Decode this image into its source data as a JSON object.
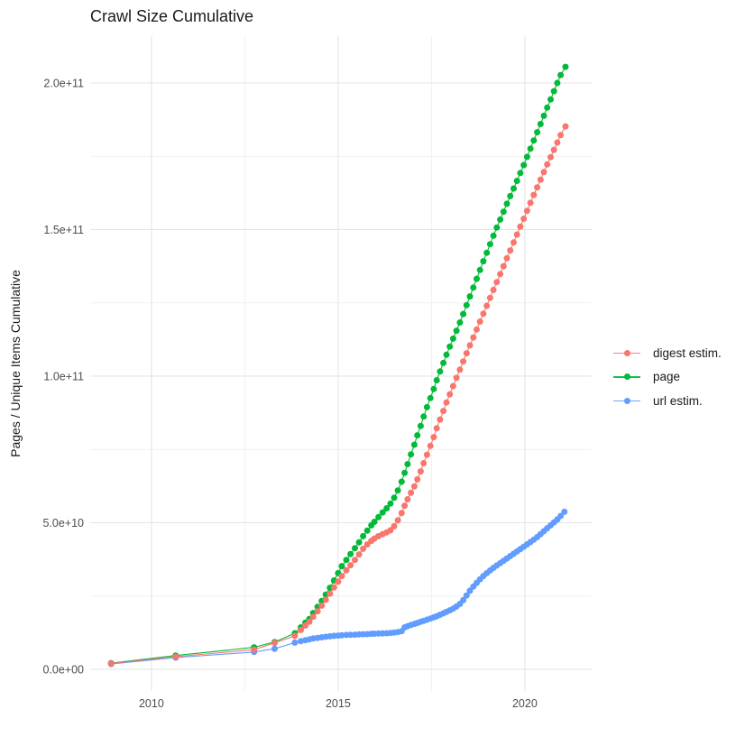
{
  "title": "Crawl Size Cumulative",
  "axes": {
    "y_title": "Pages / Unique Items Cumulative",
    "y_ticks": [
      "0.0e+00",
      "5.0e+10",
      "1.0e+11",
      "1.5e+11",
      "2.0e+11"
    ],
    "y_tick_values_billions": [
      0,
      50,
      100,
      150,
      200
    ],
    "y_minor_values_billions": [
      25,
      75,
      125,
      175
    ],
    "x_ticks": [
      "2010",
      "2015",
      "2020"
    ],
    "x_tick_values": [
      2010,
      2015,
      2020
    ],
    "x_minor_values": [
      2012.5,
      2017.5
    ],
    "x_range": [
      2008.36,
      2021.79
    ],
    "y_range_billions": [
      -7.4,
      216
    ],
    "grid": "major+minor, no axis lines (theme_minimal)"
  },
  "chart_data": {
    "type": "scatter",
    "style": "points connected by thin lines (geom_line + geom_point)",
    "title": "Crawl Size Cumulative",
    "xlabel": "",
    "ylabel": "Pages / Unique Items Cumulative",
    "x_unit": "year (crawl date)",
    "y_unit": "count; point values stored in billions (multiply by 1e9)",
    "legend_position": "right-middle",
    "colors": {
      "digest": "#F8766D",
      "page": "#00BA38",
      "url": "#619CFF"
    },
    "series": [
      {
        "name": "digest estim.",
        "color": "#F8766D",
        "points": [
          [
            2008.92,
            2.0
          ],
          [
            2010.65,
            4.3
          ],
          [
            2012.75,
            6.7
          ],
          [
            2013.3,
            9.0
          ],
          [
            2013.84,
            11.4
          ],
          [
            2014.0,
            13.4
          ],
          [
            2014.12,
            14.9
          ],
          [
            2014.23,
            16.2
          ],
          [
            2014.33,
            17.9
          ],
          [
            2014.45,
            19.8
          ],
          [
            2014.56,
            21.7
          ],
          [
            2014.67,
            23.7
          ],
          [
            2014.78,
            25.8
          ],
          [
            2014.89,
            27.9
          ],
          [
            2015.0,
            29.9
          ],
          [
            2015.1,
            31.8
          ],
          [
            2015.22,
            33.8
          ],
          [
            2015.33,
            35.5
          ],
          [
            2015.45,
            37.3
          ],
          [
            2015.56,
            39.2
          ],
          [
            2015.67,
            41.1
          ],
          [
            2015.78,
            42.6
          ],
          [
            2015.89,
            43.8
          ],
          [
            2015.97,
            44.6
          ],
          [
            2016.08,
            45.4
          ],
          [
            2016.19,
            46.1
          ],
          [
            2016.3,
            46.7
          ],
          [
            2016.4,
            47.4
          ],
          [
            2016.5,
            48.8
          ],
          [
            2016.6,
            50.8
          ],
          [
            2016.7,
            53.3
          ],
          [
            2016.78,
            55.8
          ],
          [
            2016.86,
            58.0
          ],
          [
            2016.95,
            60.2
          ],
          [
            2017.04,
            62.4
          ],
          [
            2017.12,
            64.8
          ],
          [
            2017.21,
            67.5
          ],
          [
            2017.29,
            70.3
          ],
          [
            2017.38,
            73.2
          ],
          [
            2017.47,
            76.2
          ],
          [
            2017.56,
            79.2
          ],
          [
            2017.64,
            82.2
          ],
          [
            2017.73,
            85.2
          ],
          [
            2017.82,
            88.1
          ],
          [
            2017.9,
            91.0
          ],
          [
            2017.99,
            93.8
          ],
          [
            2018.08,
            96.6
          ],
          [
            2018.17,
            99.4
          ],
          [
            2018.26,
            102.2
          ],
          [
            2018.35,
            105.0
          ],
          [
            2018.44,
            107.8
          ],
          [
            2018.53,
            110.5
          ],
          [
            2018.62,
            113.2
          ],
          [
            2018.71,
            115.9
          ],
          [
            2018.8,
            118.6
          ],
          [
            2018.89,
            121.3
          ],
          [
            2018.98,
            124.0
          ],
          [
            2019.07,
            126.7
          ],
          [
            2019.16,
            129.4
          ],
          [
            2019.25,
            132.1
          ],
          [
            2019.34,
            134.8
          ],
          [
            2019.43,
            137.5
          ],
          [
            2019.52,
            140.2
          ],
          [
            2019.61,
            142.9
          ],
          [
            2019.7,
            145.6
          ],
          [
            2019.79,
            148.3
          ],
          [
            2019.88,
            151.0
          ],
          [
            2019.97,
            153.7
          ],
          [
            2020.06,
            156.4
          ],
          [
            2020.15,
            159.1
          ],
          [
            2020.24,
            161.8
          ],
          [
            2020.33,
            164.4
          ],
          [
            2020.42,
            167.0
          ],
          [
            2020.51,
            169.6
          ],
          [
            2020.6,
            172.2
          ],
          [
            2020.69,
            174.7
          ],
          [
            2020.78,
            177.2
          ],
          [
            2020.87,
            179.7
          ],
          [
            2020.96,
            182.2
          ],
          [
            2021.09,
            185.2
          ]
        ]
      },
      {
        "name": "page",
        "color": "#00BA38",
        "points": [
          [
            2008.92,
            2.1
          ],
          [
            2010.65,
            4.7
          ],
          [
            2012.75,
            7.5
          ],
          [
            2013.3,
            9.3
          ],
          [
            2013.84,
            12.3
          ],
          [
            2014.0,
            14.3
          ],
          [
            2014.12,
            15.9
          ],
          [
            2014.23,
            17.2
          ],
          [
            2014.33,
            19.2
          ],
          [
            2014.45,
            21.3
          ],
          [
            2014.56,
            23.3
          ],
          [
            2014.67,
            25.5
          ],
          [
            2014.78,
            27.8
          ],
          [
            2014.89,
            30.3
          ],
          [
            2015.0,
            32.8
          ],
          [
            2015.1,
            35.2
          ],
          [
            2015.22,
            37.3
          ],
          [
            2015.33,
            39.3
          ],
          [
            2015.45,
            41.3
          ],
          [
            2015.56,
            43.3
          ],
          [
            2015.67,
            45.4
          ],
          [
            2015.78,
            47.3
          ],
          [
            2015.89,
            49.1
          ],
          [
            2015.97,
            50.3
          ],
          [
            2016.08,
            51.9
          ],
          [
            2016.19,
            53.5
          ],
          [
            2016.3,
            54.9
          ],
          [
            2016.4,
            56.5
          ],
          [
            2016.5,
            58.5
          ],
          [
            2016.6,
            61.0
          ],
          [
            2016.7,
            64.0
          ],
          [
            2016.78,
            67.0
          ],
          [
            2016.86,
            70.0
          ],
          [
            2016.95,
            73.3
          ],
          [
            2017.04,
            76.6
          ],
          [
            2017.12,
            79.8
          ],
          [
            2017.21,
            83.0
          ],
          [
            2017.29,
            86.2
          ],
          [
            2017.38,
            89.4
          ],
          [
            2017.47,
            92.5
          ],
          [
            2017.56,
            95.6
          ],
          [
            2017.64,
            98.6
          ],
          [
            2017.73,
            101.6
          ],
          [
            2017.82,
            104.5
          ],
          [
            2017.9,
            107.3
          ],
          [
            2017.99,
            110.1
          ],
          [
            2018.08,
            112.8
          ],
          [
            2018.17,
            115.5
          ],
          [
            2018.26,
            118.3
          ],
          [
            2018.35,
            121.2
          ],
          [
            2018.44,
            124.2
          ],
          [
            2018.53,
            127.2
          ],
          [
            2018.62,
            130.2
          ],
          [
            2018.71,
            133.2
          ],
          [
            2018.8,
            136.2
          ],
          [
            2018.89,
            139.2
          ],
          [
            2018.98,
            142.1
          ],
          [
            2019.07,
            145.0
          ],
          [
            2019.16,
            147.9
          ],
          [
            2019.25,
            150.7
          ],
          [
            2019.34,
            153.4
          ],
          [
            2019.43,
            156.1
          ],
          [
            2019.52,
            158.8
          ],
          [
            2019.61,
            161.4
          ],
          [
            2019.7,
            164.0
          ],
          [
            2019.79,
            166.6
          ],
          [
            2019.88,
            169.3
          ],
          [
            2019.97,
            172.0
          ],
          [
            2020.06,
            174.8
          ],
          [
            2020.15,
            177.6
          ],
          [
            2020.24,
            180.4
          ],
          [
            2020.33,
            183.2
          ],
          [
            2020.42,
            186.0
          ],
          [
            2020.51,
            188.8
          ],
          [
            2020.6,
            191.6
          ],
          [
            2020.69,
            194.4
          ],
          [
            2020.78,
            197.2
          ],
          [
            2020.87,
            200.0
          ],
          [
            2020.96,
            202.7
          ],
          [
            2021.09,
            205.5
          ]
        ]
      },
      {
        "name": "url estim.",
        "color": "#619CFF",
        "points": [
          [
            2008.92,
            1.8
          ],
          [
            2010.65,
            4.0
          ],
          [
            2012.75,
            5.9
          ],
          [
            2013.3,
            7.0
          ],
          [
            2013.84,
            9.1
          ],
          [
            2014.0,
            9.6
          ],
          [
            2014.12,
            9.9
          ],
          [
            2014.23,
            10.2
          ],
          [
            2014.33,
            10.5
          ],
          [
            2014.45,
            10.7
          ],
          [
            2014.56,
            10.9
          ],
          [
            2014.67,
            11.1
          ],
          [
            2014.78,
            11.25
          ],
          [
            2014.89,
            11.4
          ],
          [
            2015.0,
            11.5
          ],
          [
            2015.1,
            11.6
          ],
          [
            2015.22,
            11.7
          ],
          [
            2015.33,
            11.75
          ],
          [
            2015.45,
            11.8
          ],
          [
            2015.56,
            11.9
          ],
          [
            2015.67,
            11.95
          ],
          [
            2015.78,
            12.0
          ],
          [
            2015.89,
            12.1
          ],
          [
            2015.97,
            12.15
          ],
          [
            2016.08,
            12.2
          ],
          [
            2016.19,
            12.25
          ],
          [
            2016.3,
            12.3
          ],
          [
            2016.4,
            12.4
          ],
          [
            2016.5,
            12.5
          ],
          [
            2016.6,
            12.7
          ],
          [
            2016.7,
            13.0
          ],
          [
            2016.78,
            14.3
          ],
          [
            2016.86,
            14.7
          ],
          [
            2016.95,
            15.1
          ],
          [
            2017.04,
            15.5
          ],
          [
            2017.12,
            15.8
          ],
          [
            2017.21,
            16.2
          ],
          [
            2017.29,
            16.5
          ],
          [
            2017.38,
            16.9
          ],
          [
            2017.47,
            17.3
          ],
          [
            2017.56,
            17.7
          ],
          [
            2017.64,
            18.1
          ],
          [
            2017.73,
            18.6
          ],
          [
            2017.82,
            19.1
          ],
          [
            2017.9,
            19.6
          ],
          [
            2017.99,
            20.1
          ],
          [
            2018.08,
            20.7
          ],
          [
            2018.17,
            21.4
          ],
          [
            2018.26,
            22.3
          ],
          [
            2018.35,
            23.6
          ],
          [
            2018.44,
            25.2
          ],
          [
            2018.53,
            26.8
          ],
          [
            2018.62,
            28.2
          ],
          [
            2018.71,
            29.5
          ],
          [
            2018.8,
            30.7
          ],
          [
            2018.89,
            31.8
          ],
          [
            2018.98,
            32.8
          ],
          [
            2019.07,
            33.7
          ],
          [
            2019.16,
            34.6
          ],
          [
            2019.25,
            35.4
          ],
          [
            2019.34,
            36.2
          ],
          [
            2019.43,
            37.0
          ],
          [
            2019.52,
            37.8
          ],
          [
            2019.61,
            38.6
          ],
          [
            2019.7,
            39.4
          ],
          [
            2019.79,
            40.2
          ],
          [
            2019.88,
            41.0
          ],
          [
            2019.97,
            41.8
          ],
          [
            2020.06,
            42.6
          ],
          [
            2020.15,
            43.4
          ],
          [
            2020.24,
            44.2
          ],
          [
            2020.33,
            45.1
          ],
          [
            2020.42,
            46.1
          ],
          [
            2020.51,
            47.1
          ],
          [
            2020.6,
            48.1
          ],
          [
            2020.69,
            49.1
          ],
          [
            2020.78,
            50.1
          ],
          [
            2020.87,
            51.1
          ],
          [
            2020.96,
            52.3
          ],
          [
            2021.06,
            53.7
          ]
        ]
      }
    ]
  }
}
